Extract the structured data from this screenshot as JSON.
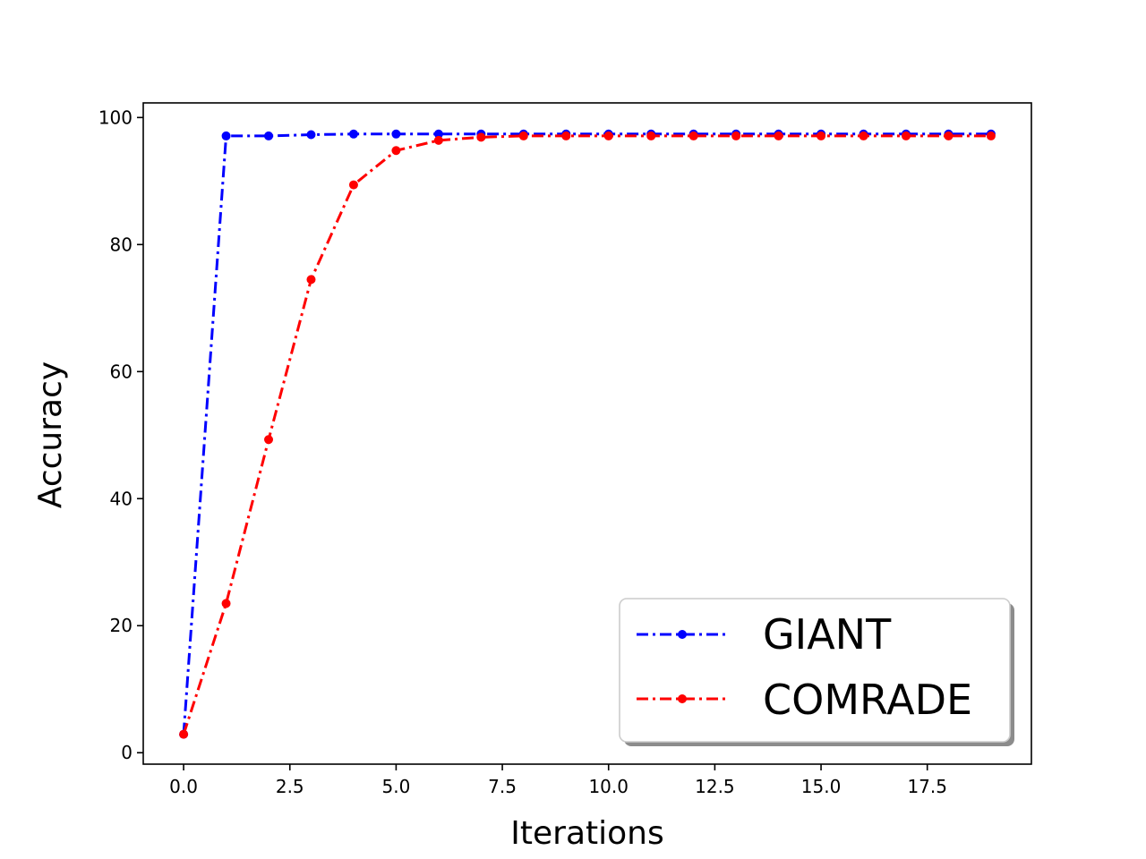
{
  "chart_data": {
    "type": "line",
    "title": "",
    "xlabel": "Iterations",
    "ylabel": "Accuracy",
    "xlim": [
      -0.95,
      19.95
    ],
    "ylim": [
      -1.8,
      102.3
    ],
    "xticks": [
      0.0,
      2.5,
      5.0,
      7.5,
      10.0,
      12.5,
      15.0,
      17.5
    ],
    "xtick_labels": [
      "0.0",
      "2.5",
      "5.0",
      "7.5",
      "10.0",
      "12.5",
      "15.0",
      "17.5"
    ],
    "yticks": [
      0,
      20,
      40,
      60,
      80,
      100
    ],
    "ytick_labels": [
      "0",
      "20",
      "40",
      "60",
      "80",
      "100"
    ],
    "grid": false,
    "legend_position": "lower-right",
    "x": [
      0,
      1,
      2,
      3,
      4,
      5,
      6,
      7,
      8,
      9,
      10,
      11,
      12,
      13,
      14,
      15,
      16,
      17,
      18,
      19
    ],
    "series": [
      {
        "name": "GIANT",
        "color": "#0000ff",
        "line_style": "dash-dot",
        "marker": "circle",
        "values": [
          2.9,
          97.1,
          97.1,
          97.3,
          97.4,
          97.4,
          97.4,
          97.4,
          97.4,
          97.4,
          97.4,
          97.4,
          97.4,
          97.4,
          97.4,
          97.4,
          97.4,
          97.4,
          97.4,
          97.4
        ]
      },
      {
        "name": "COMRADE",
        "color": "#ff0000",
        "line_style": "dash-dot",
        "marker": "circle",
        "values": [
          2.9,
          23.5,
          49.3,
          74.5,
          89.4,
          94.8,
          96.4,
          96.9,
          97.1,
          97.1,
          97.1,
          97.1,
          97.1,
          97.1,
          97.1,
          97.1,
          97.1,
          97.1,
          97.1,
          97.1
        ]
      }
    ]
  }
}
